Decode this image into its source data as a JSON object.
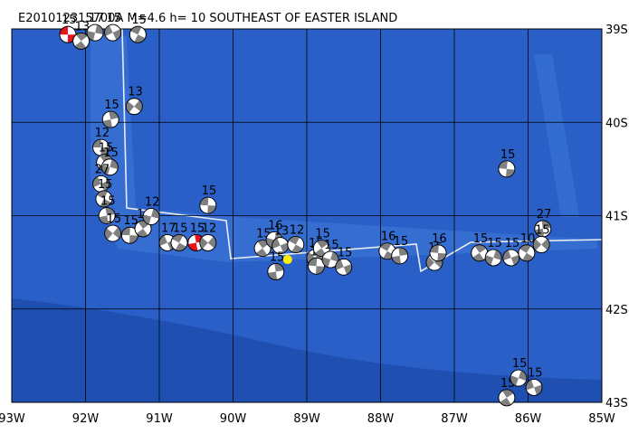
{
  "chart_data": {
    "type": "focal-map",
    "title": "E201012315700A M=4.6 h= 10 SOUTHEAST OF EASTER ISLAND",
    "xlim": [
      -93,
      -85
    ],
    "ylim": [
      -43,
      -39
    ],
    "xticks": [
      {
        "value": -93,
        "label": "93W"
      },
      {
        "value": -92,
        "label": "92W"
      },
      {
        "value": -91,
        "label": "91W"
      },
      {
        "value": -90,
        "label": "90W"
      },
      {
        "value": -89,
        "label": "89W"
      },
      {
        "value": -88,
        "label": "88W"
      },
      {
        "value": -87,
        "label": "87W"
      },
      {
        "value": -86,
        "label": "86W"
      },
      {
        "value": -85,
        "label": "85W"
      }
    ],
    "yticks": [
      {
        "value": -39,
        "label": "39S"
      },
      {
        "value": -40,
        "label": "40S"
      },
      {
        "value": -41,
        "label": "41S"
      },
      {
        "value": -42,
        "label": "42S"
      },
      {
        "value": -43,
        "label": "43S"
      }
    ],
    "grid": true,
    "epicenter": {
      "lon": -89.26,
      "lat": -41.47,
      "color": "#ffee00"
    },
    "events": [
      {
        "lon": -92.24,
        "lat": -39.06,
        "depth": 15,
        "color": "#e8141c"
      },
      {
        "lon": -92.06,
        "lat": -39.13,
        "depth": 13,
        "color": "#808080"
      },
      {
        "lon": -91.87,
        "lat": -39.04,
        "depth": 17,
        "color": "#808080"
      },
      {
        "lon": -91.63,
        "lat": -39.04,
        "depth": 15,
        "color": "#808080"
      },
      {
        "lon": -91.29,
        "lat": -39.06,
        "depth": 15,
        "color": "#808080"
      },
      {
        "lon": -91.66,
        "lat": -39.97,
        "depth": 15,
        "color": "#808080"
      },
      {
        "lon": -91.34,
        "lat": -39.83,
        "depth": 13,
        "color": "#808080"
      },
      {
        "lon": -91.79,
        "lat": -40.27,
        "depth": 12,
        "color": "#808080"
      },
      {
        "lon": -91.74,
        "lat": -40.43,
        "depth": 15,
        "color": "#808080"
      },
      {
        "lon": -91.67,
        "lat": -40.48,
        "depth": 15,
        "color": "#808080"
      },
      {
        "lon": -91.79,
        "lat": -40.66,
        "depth": 27,
        "color": "#808080"
      },
      {
        "lon": -91.75,
        "lat": -40.82,
        "depth": 15,
        "color": "#808080"
      },
      {
        "lon": -91.71,
        "lat": -41.0,
        "depth": 15,
        "color": "#808080"
      },
      {
        "lon": -91.63,
        "lat": -41.19,
        "depth": 15,
        "color": "#808080"
      },
      {
        "lon": -91.4,
        "lat": -41.21,
        "depth": 15,
        "color": "#808080"
      },
      {
        "lon": -91.22,
        "lat": -41.14,
        "depth": 16,
        "color": "#808080"
      },
      {
        "lon": -91.11,
        "lat": -41.01,
        "depth": 12,
        "color": "#808080"
      },
      {
        "lon": -90.89,
        "lat": -41.29,
        "depth": 17,
        "color": "#808080"
      },
      {
        "lon": -90.73,
        "lat": -41.29,
        "depth": 15,
        "color": "#808080"
      },
      {
        "lon": -90.5,
        "lat": -41.29,
        "depth": 15,
        "color": "#e8141c"
      },
      {
        "lon": -90.34,
        "lat": -41.29,
        "depth": 12,
        "color": "#808080"
      },
      {
        "lon": -90.34,
        "lat": -40.89,
        "depth": 15,
        "color": "#808080"
      },
      {
        "lon": -89.6,
        "lat": -41.35,
        "depth": 15,
        "color": "#808080"
      },
      {
        "lon": -89.44,
        "lat": -41.26,
        "depth": 16,
        "color": "#808080"
      },
      {
        "lon": -89.36,
        "lat": -41.32,
        "depth": 13,
        "color": "#808080"
      },
      {
        "lon": -89.15,
        "lat": -41.31,
        "depth": 12,
        "color": "#808080"
      },
      {
        "lon": -89.42,
        "lat": -41.6,
        "depth": 15,
        "color": "#808080"
      },
      {
        "lon": -88.89,
        "lat": -41.45,
        "depth": 15,
        "color": "#808080"
      },
      {
        "lon": -88.87,
        "lat": -41.54,
        "depth": 16,
        "color": "#808080"
      },
      {
        "lon": -88.8,
        "lat": -41.35,
        "depth": 15,
        "color": "#808080"
      },
      {
        "lon": -88.68,
        "lat": -41.47,
        "depth": 15,
        "color": "#808080"
      },
      {
        "lon": -88.5,
        "lat": -41.55,
        "depth": 15,
        "color": "#808080"
      },
      {
        "lon": -87.91,
        "lat": -41.38,
        "depth": 16,
        "color": "#808080"
      },
      {
        "lon": -87.74,
        "lat": -41.43,
        "depth": 15,
        "color": "#808080"
      },
      {
        "lon": -87.27,
        "lat": -41.5,
        "depth": 15,
        "color": "#808080"
      },
      {
        "lon": -87.22,
        "lat": -41.4,
        "depth": 16,
        "color": "#808080"
      },
      {
        "lon": -86.66,
        "lat": -41.4,
        "depth": 15,
        "color": "#808080"
      },
      {
        "lon": -86.47,
        "lat": -41.45,
        "depth": 15,
        "color": "#808080"
      },
      {
        "lon": -86.23,
        "lat": -41.45,
        "depth": 15,
        "color": "#808080"
      },
      {
        "lon": -86.02,
        "lat": -41.4,
        "depth": 10,
        "color": "#808080"
      },
      {
        "lon": -85.8,
        "lat": -41.14,
        "depth": 27,
        "color": "#808080"
      },
      {
        "lon": -85.82,
        "lat": -41.31,
        "depth": 15,
        "color": "#808080"
      },
      {
        "lon": -86.29,
        "lat": -40.5,
        "depth": 15,
        "color": "#808080"
      },
      {
        "lon": -86.29,
        "lat": -42.95,
        "depth": 15,
        "color": "#808080"
      },
      {
        "lon": -86.13,
        "lat": -42.74,
        "depth": 15,
        "color": "#808080"
      },
      {
        "lon": -85.92,
        "lat": -42.84,
        "depth": 15,
        "color": "#808080"
      }
    ]
  }
}
